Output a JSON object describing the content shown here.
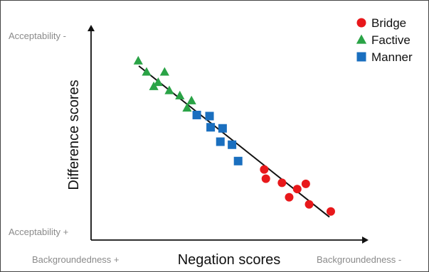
{
  "chart_data": {
    "type": "scatter",
    "title": "",
    "xlabel": "Negation scores",
    "ylabel": "Difference scores",
    "x_axis_annotations": {
      "left": "Backgroundedness +",
      "right": "Backgroundedness -"
    },
    "y_axis_annotations": {
      "top": "Acceptability -",
      "bottom": "Acceptability +"
    },
    "xlim": [
      0,
      100
    ],
    "ylim": [
      0,
      100
    ],
    "grid": false,
    "legend_position": "top-right",
    "trendline": {
      "x": [
        17.2,
        85.9
      ],
      "y": [
        80.9,
        10.7
      ],
      "color": "#111111"
    },
    "series": [
      {
        "name": "Bridge",
        "marker": "circle",
        "color": "#e8181b",
        "points": [
          [
            62.4,
            32.8
          ],
          [
            63.0,
            28.5
          ],
          [
            68.8,
            26.6
          ],
          [
            74.3,
            23.7
          ],
          [
            71.4,
            19.9
          ],
          [
            77.4,
            26.1
          ],
          [
            78.6,
            16.6
          ],
          [
            86.4,
            13.3
          ]
        ]
      },
      {
        "name": "Factive",
        "marker": "triangle",
        "color": "#2aa346",
        "points": [
          [
            17.0,
            83.3
          ],
          [
            20.0,
            78.1
          ],
          [
            22.6,
            71.4
          ],
          [
            24.2,
            73.3
          ],
          [
            26.5,
            78.1
          ],
          [
            28.2,
            69.5
          ],
          [
            32.0,
            67.1
          ],
          [
            34.6,
            61.4
          ],
          [
            36.2,
            64.8
          ]
        ]
      },
      {
        "name": "Manner",
        "marker": "square",
        "color": "#1a6fbf",
        "points": [
          [
            38.1,
            58.1
          ],
          [
            42.7,
            57.6
          ],
          [
            43.1,
            52.4
          ],
          [
            47.4,
            51.9
          ],
          [
            46.6,
            45.7
          ],
          [
            50.8,
            44.3
          ],
          [
            53.0,
            36.7
          ]
        ]
      }
    ]
  }
}
